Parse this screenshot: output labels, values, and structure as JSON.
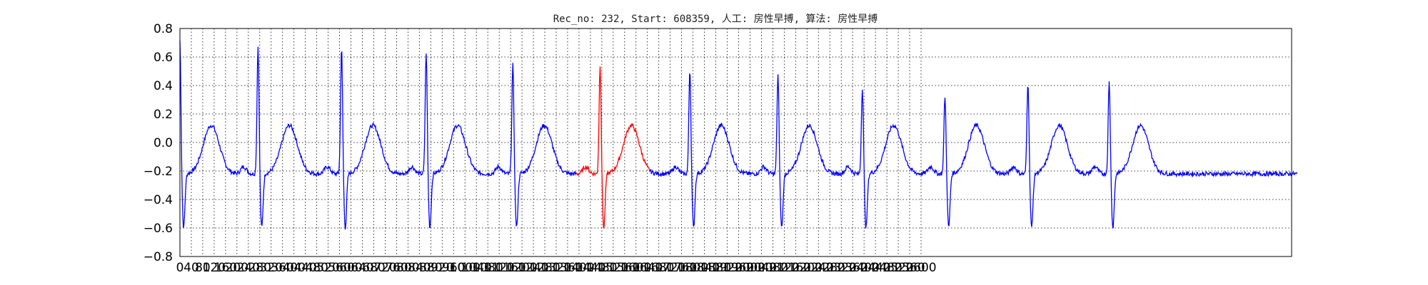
{
  "chart_data": {
    "type": "line",
    "title": "Rec_no: 232, Start: 608359, 人工: 房性早搏, 算法: 房性早搏",
    "xlabel": "",
    "ylabel": "",
    "xlim": [
      0,
      3900
    ],
    "ylim": [
      -0.8,
      0.8
    ],
    "grid": true,
    "y_ticks": [
      "−0.8",
      "−0.6",
      "−0.4",
      "−0.2",
      "0.0",
      "0.2",
      "0.4",
      "0.6",
      "0.8"
    ],
    "y_tick_values": [
      -0.8,
      -0.6,
      -0.4,
      -0.2,
      0.0,
      0.2,
      0.4,
      0.6,
      0.8
    ],
    "x_tick_values": [
      0,
      40,
      80,
      120,
      160,
      200,
      240,
      280,
      320,
      360,
      400,
      440,
      480,
      520,
      560,
      600,
      640,
      680,
      720,
      760,
      800,
      840,
      880,
      920,
      960,
      1000,
      1040,
      1080,
      1120,
      1160,
      1200,
      1240,
      1280,
      1320,
      1360,
      1400,
      1440,
      1480,
      1520,
      1560,
      1600,
      1640,
      1680,
      1720,
      1760,
      1800,
      1840,
      1880,
      1920,
      1960,
      2000,
      2040,
      2080,
      2120,
      2160,
      2200,
      2240,
      2280,
      2320,
      2360,
      2400,
      2440,
      2480,
      2520,
      2560,
      2600
    ],
    "x_tick_labels": [
      "0",
      "40",
      "80",
      "120",
      "160",
      "200",
      "240",
      "280",
      "320",
      "360",
      "400",
      "440",
      "480",
      "520",
      "560",
      "600",
      "640",
      "680",
      "720",
      "760",
      "800",
      "840",
      "880",
      "920",
      "960",
      "1000",
      "1040",
      "1080",
      "1120",
      "1160",
      "1200",
      "1240",
      "1280",
      "1320",
      "1360",
      "1400",
      "1440",
      "1480",
      "1520",
      "1560",
      "1600",
      "1640",
      "1680",
      "1720",
      "1760",
      "1800",
      "1840",
      "1880",
      "1920",
      "1960",
      "2000",
      "2040",
      "2080",
      "2120",
      "2160",
      "2200",
      "2240",
      "2280",
      "2320",
      "2360",
      "2400",
      "2440",
      "2480",
      "2520",
      "2560",
      "2600"
    ],
    "beat_r_peaks": [
      0,
      274,
      567,
      864,
      1168,
      1474,
      1789,
      2098,
      2394,
      2684,
      2975,
      3260
    ],
    "beat_r_amplitudes": [
      0.69,
      0.65,
      0.64,
      0.61,
      0.52,
      0.52,
      0.49,
      0.45,
      0.36,
      0.3,
      0.4,
      0.4
    ],
    "highlighted_segment": {
      "x_start": 1390,
      "x_end": 1650,
      "color": "#ff0000"
    },
    "series": [
      {
        "color": "#0000ff",
        "x_end": 3920
      }
    ]
  }
}
